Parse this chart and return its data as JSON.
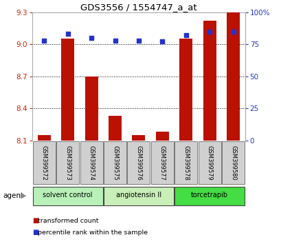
{
  "title": "GDS3556 / 1554747_a_at",
  "samples": [
    "GSM399572",
    "GSM399573",
    "GSM399574",
    "GSM399575",
    "GSM399576",
    "GSM399577",
    "GSM399578",
    "GSM399579",
    "GSM399580"
  ],
  "red_values": [
    8.15,
    9.05,
    8.7,
    8.33,
    8.15,
    8.18,
    9.05,
    9.22,
    9.3
  ],
  "blue_values": [
    78,
    83,
    80,
    78,
    78,
    77,
    82,
    85,
    85
  ],
  "ylim_left": [
    8.1,
    9.3
  ],
  "ylim_right": [
    0,
    100
  ],
  "yticks_left": [
    8.1,
    8.4,
    8.7,
    9.0,
    9.3
  ],
  "yticks_right": [
    0,
    25,
    50,
    75,
    100
  ],
  "ytick_right_labels": [
    "0",
    "25",
    "50",
    "75",
    "100%"
  ],
  "groups": [
    {
      "label": "solvent control",
      "color": "#b8f0b8",
      "start": 0,
      "end": 3
    },
    {
      "label": "angiotensin II",
      "color": "#c8efb8",
      "start": 3,
      "end": 6
    },
    {
      "label": "torcetrapib",
      "color": "#44dd44",
      "start": 6,
      "end": 9
    }
  ],
  "bar_color": "#bb1100",
  "dot_color": "#2233cc",
  "bar_width": 0.55,
  "agent_label": "agent",
  "legend_red": "transformed count",
  "legend_blue": "percentile rank within the sample",
  "tick_color_left": "#cc2200",
  "tick_color_right": "#2233cc",
  "background_plot": "#ffffff",
  "background_label": "#d0d0d0",
  "label_bg_edge": "#888888",
  "spine_color": "#aaaaaa"
}
